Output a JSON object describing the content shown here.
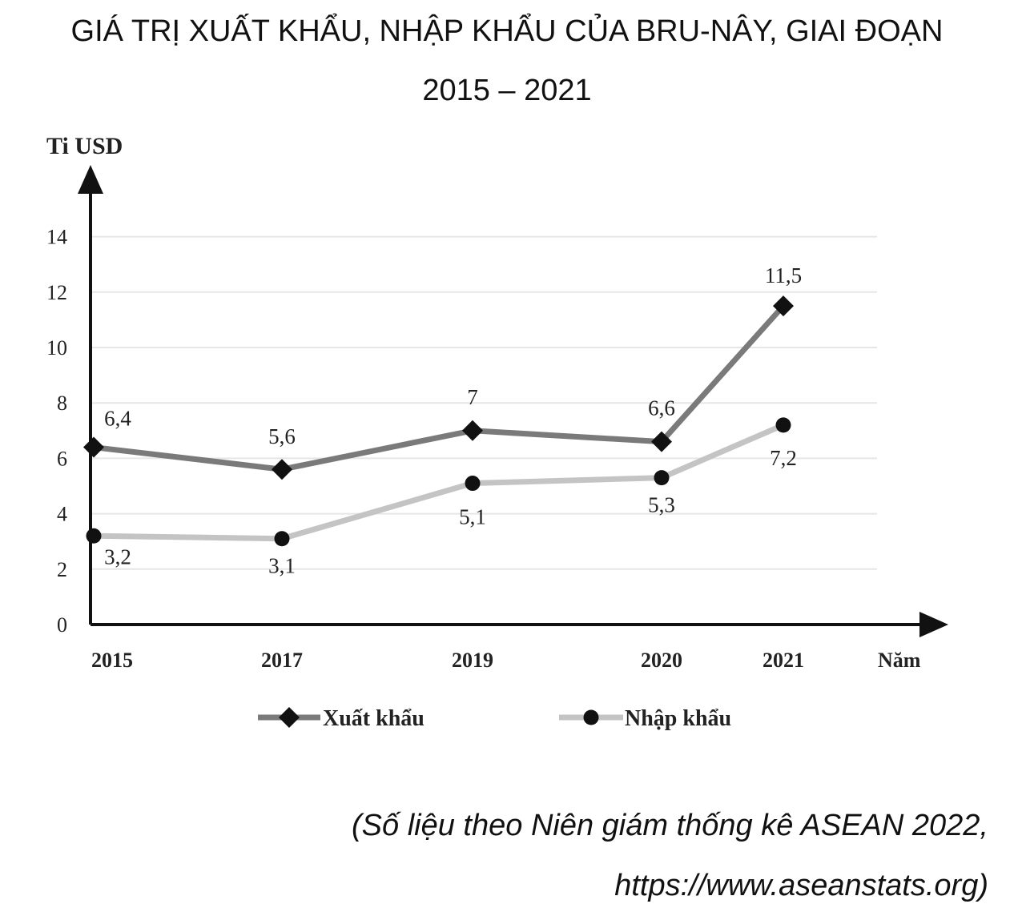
{
  "title_line1": "GIÁ TRỊ XUẤT KHẨU, NHẬP KHẨU CỦA BRU-NÂY, GIAI ĐOẠN",
  "title_line2": "2015 – 2021",
  "source_line1": "(Số liệu theo Niên giám thống kê ASEAN 2022,",
  "source_line2": "https://www.aseanstats.org)",
  "chart_data": {
    "type": "line",
    "categories": [
      "2015",
      "2017",
      "2019",
      "2020",
      "2021"
    ],
    "xlabel": "Năm",
    "ylabel": "Ti USD",
    "ylim": [
      0,
      14
    ],
    "yticks": [
      0,
      2,
      4,
      6,
      8,
      10,
      12,
      14
    ],
    "grid": true,
    "legend_placement": "bottom",
    "series": [
      {
        "name": "Xuất khẩu",
        "values": [
          6.4,
          5.6,
          7,
          6.6,
          11.5
        ],
        "labels": [
          "6,4",
          "5,6",
          "7",
          "6,6",
          "11,5"
        ],
        "color": "#7a7a7a",
        "marker": "diamond"
      },
      {
        "name": "Nhập khẩu",
        "values": [
          3.2,
          3.1,
          5.1,
          5.3,
          7.2
        ],
        "labels": [
          "3,2",
          "3,1",
          "5,1",
          "5,3",
          "7,2"
        ],
        "color": "#c4c4c4",
        "marker": "circle"
      }
    ]
  }
}
